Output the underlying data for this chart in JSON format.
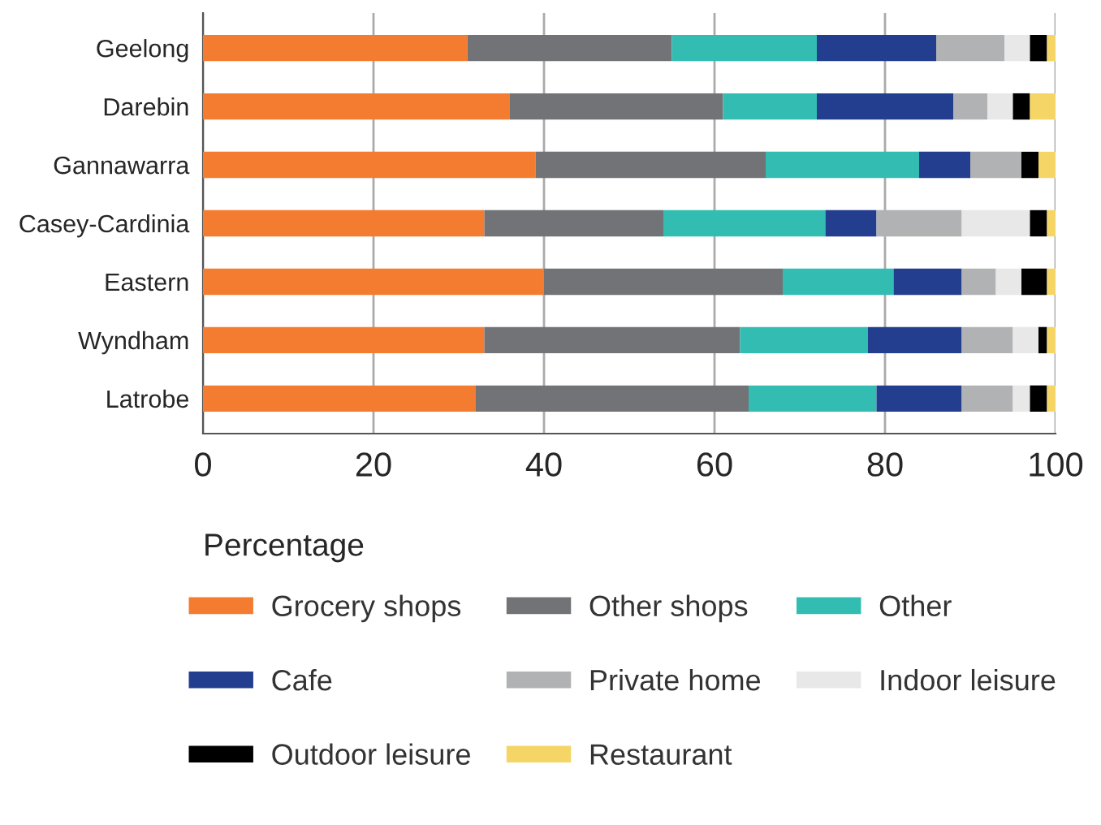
{
  "chart_data": {
    "type": "bar",
    "orientation": "horizontal",
    "stacked": true,
    "xlabel": "Percentage",
    "categories": [
      "Geelong",
      "Darebin",
      "Gannawarra",
      "Casey-Cardinia",
      "Eastern",
      "Wyndham",
      "Latrobe"
    ],
    "series": [
      {
        "name": "Grocery shops",
        "color": "#f47c30",
        "values": [
          31,
          36,
          39,
          33,
          40,
          33,
          32
        ]
      },
      {
        "name": "Other shops",
        "color": "#727376",
        "values": [
          24,
          25,
          27,
          21,
          28,
          30,
          32
        ]
      },
      {
        "name": "Other",
        "color": "#33bdb2",
        "values": [
          17,
          11,
          18,
          19,
          13,
          15,
          15
        ]
      },
      {
        "name": "Cafe",
        "color": "#233e8f",
        "values": [
          14,
          16,
          6,
          6,
          8,
          11,
          10
        ]
      },
      {
        "name": "Private home",
        "color": "#b1b2b4",
        "values": [
          8,
          4,
          6,
          10,
          4,
          6,
          6
        ]
      },
      {
        "name": "Indoor leisure",
        "color": "#e8e8e9",
        "values": [
          3,
          3,
          0,
          8,
          3,
          3,
          2
        ]
      },
      {
        "name": "Outdoor leisure",
        "color": "#000000",
        "values": [
          2,
          2,
          2,
          2,
          3,
          1,
          2
        ]
      },
      {
        "name": "Restaurant",
        "color": "#f5d565",
        "values": [
          1,
          3,
          2,
          1,
          1,
          1,
          1
        ]
      }
    ],
    "xlim": [
      0,
      100
    ],
    "xticks": [
      0,
      20,
      40,
      60,
      80,
      100
    ],
    "grid": "x",
    "legend": "bottom"
  }
}
